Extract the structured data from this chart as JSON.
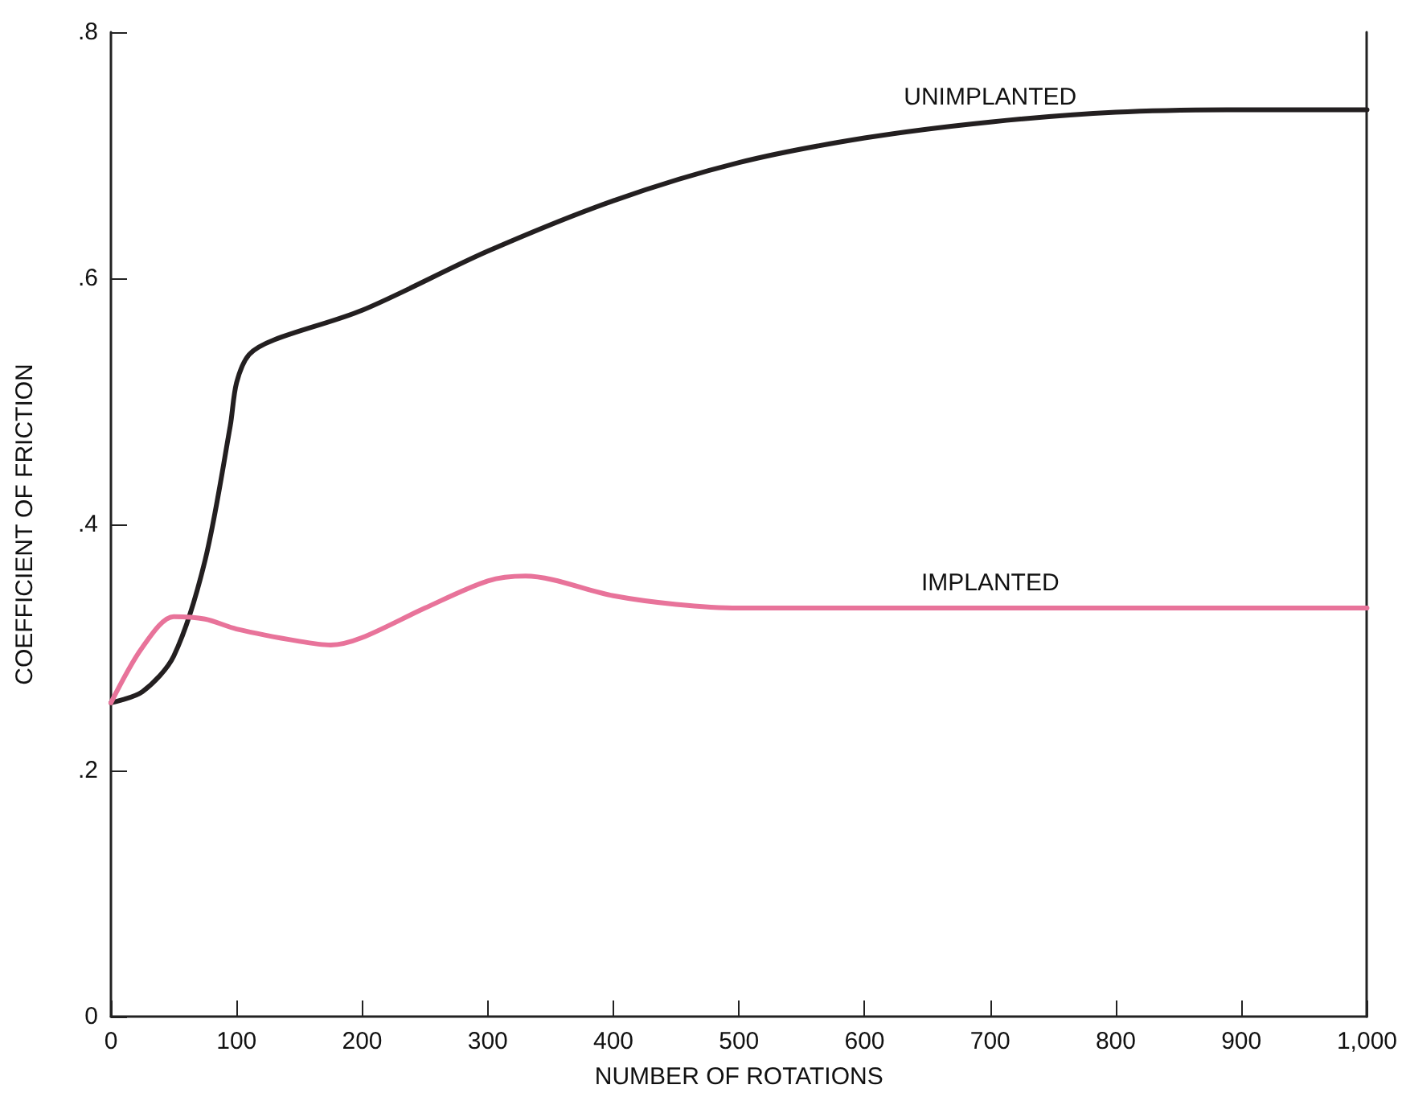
{
  "chart_data": {
    "type": "line",
    "xlabel": "NUMBER OF ROTATIONS",
    "ylabel": "COEFFICIENT OF FRICTION",
    "xlim": [
      0,
      1000
    ],
    "xticks": [
      0,
      100,
      200,
      300,
      400,
      500,
      600,
      700,
      800,
      900,
      {
        "value": 1000,
        "label": "1,000"
      }
    ],
    "ylim": [
      0,
      0.8
    ],
    "yticks": [
      0,
      {
        "value": 0.2,
        "label": ".2"
      },
      {
        "value": 0.4,
        "label": ".4"
      },
      {
        "value": 0.6,
        "label": ".6"
      },
      {
        "value": 0.8,
        "label": ".8"
      }
    ],
    "grid": false,
    "legend": false,
    "marker": "none",
    "line_style": "solid",
    "series": [
      {
        "name": "UNIMPLANTED",
        "color": "#231f20",
        "x": [
          0,
          25,
          50,
          75,
          95,
          100,
          110,
          130,
          200,
          300,
          400,
          500,
          600,
          700,
          800,
          900,
          1000
        ],
        "values": [
          0.255,
          0.264,
          0.293,
          0.371,
          0.48,
          0.515,
          0.538,
          0.55,
          0.574,
          0.622,
          0.663,
          0.694,
          0.714,
          0.727,
          0.735,
          0.737,
          0.737
        ]
      },
      {
        "name": "IMPLANTED",
        "color": "#e8739a",
        "x": [
          0,
          25,
          50,
          75,
          100,
          150,
          175,
          200,
          250,
          300,
          330,
          400,
          450,
          500,
          600,
          700,
          800,
          900,
          1000
        ],
        "values": [
          0.255,
          0.3,
          0.325,
          0.323,
          0.315,
          0.305,
          0.302,
          0.308,
          0.332,
          0.354,
          0.358,
          0.342,
          0.335,
          0.332,
          0.332,
          0.332,
          0.332,
          0.332,
          0.332
        ]
      }
    ]
  }
}
